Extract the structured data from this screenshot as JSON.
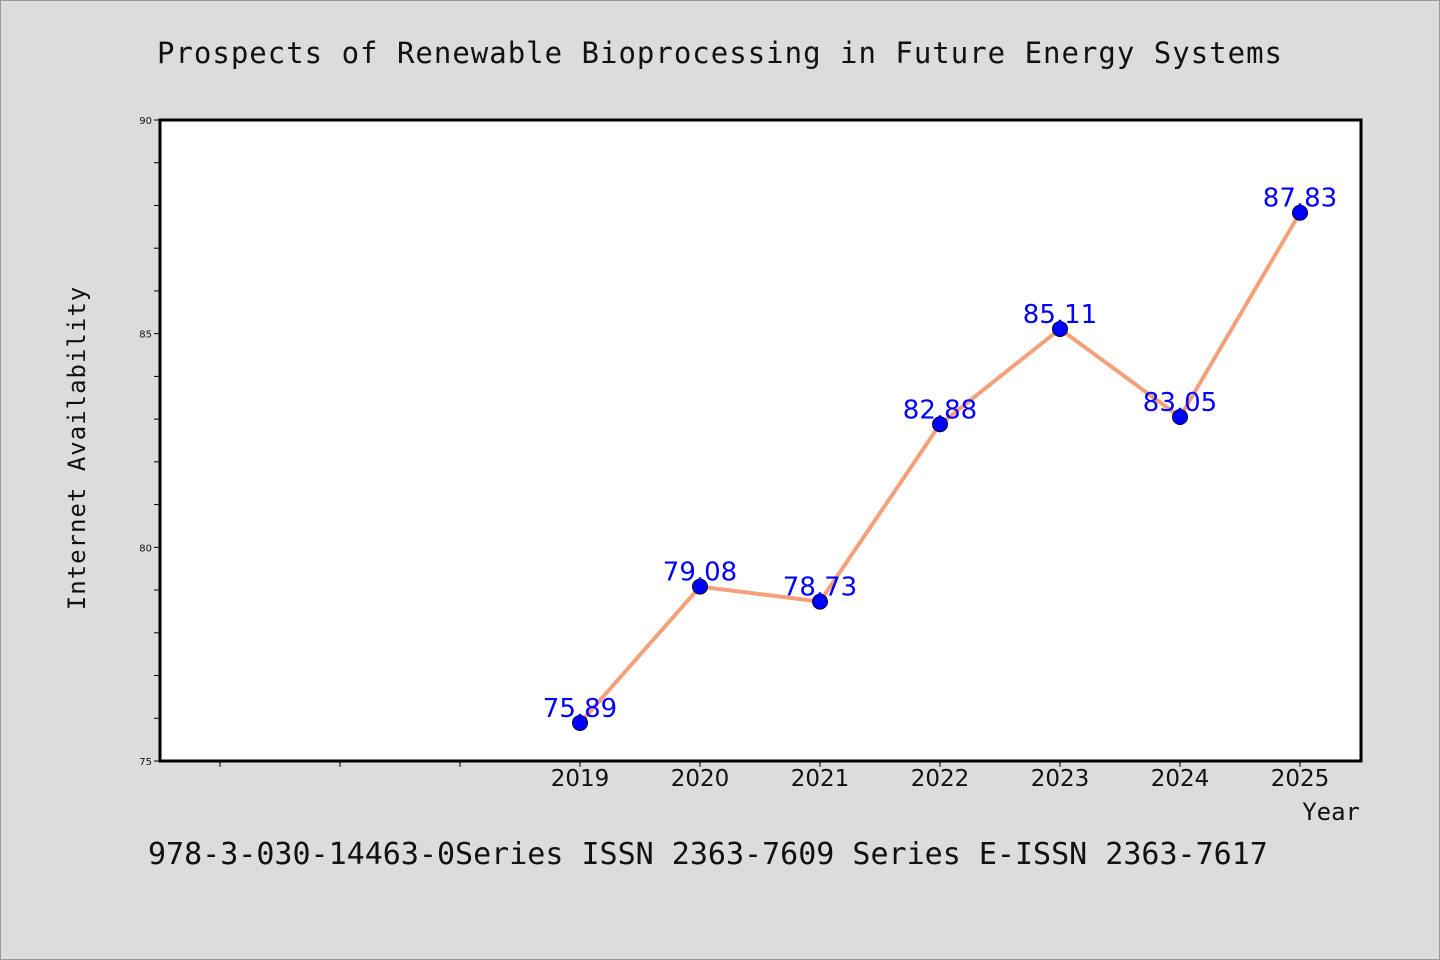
{
  "chart_data": {
    "type": "line",
    "title": "Prospects of Renewable Bioprocessing in Future Energy Systems",
    "xlabel": "Year",
    "ylabel": "Internet Availability",
    "categories": [
      "2019",
      "2020",
      "2021",
      "2022",
      "2023",
      "2024",
      "2025"
    ],
    "values": [
      75.89,
      79.08,
      78.73,
      82.88,
      85.11,
      83.05,
      87.83
    ],
    "data_labels": [
      "75.89",
      "79.08",
      "78.73",
      "82.88",
      "85.11",
      "83.05",
      "87.83"
    ],
    "ylim": [
      75,
      90
    ],
    "yticks": [
      "75",
      "80",
      "85",
      "90"
    ],
    "grid": false,
    "line_color": "#f4a07a",
    "marker_color": "#0000ff",
    "label_color": "#0000ff"
  },
  "footer": "978-3-030-14463-0Series ISSN 2363-7609 Series E-ISSN 2363-7617"
}
